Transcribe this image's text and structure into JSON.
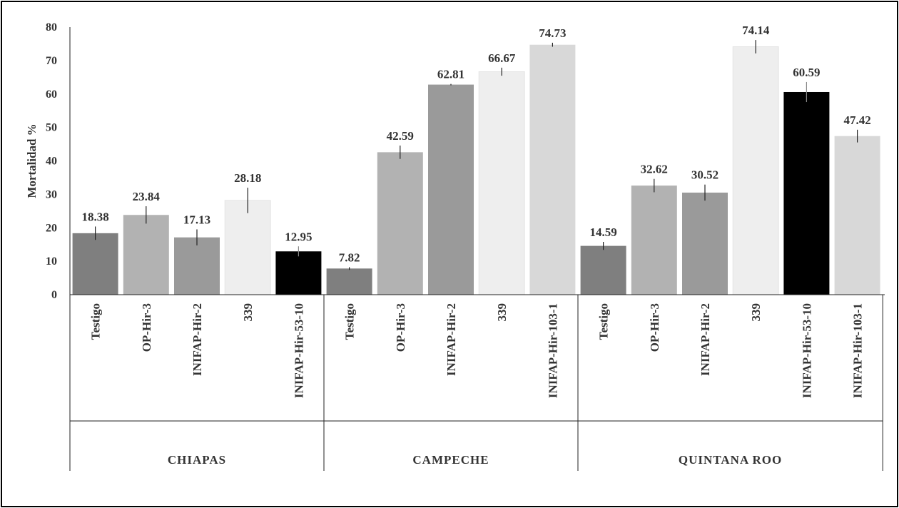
{
  "chart_data": {
    "type": "bar",
    "ylabel": "Mortalidad  %",
    "ylim": [
      0,
      80
    ],
    "yticks": [
      0,
      10,
      20,
      30,
      40,
      50,
      60,
      70,
      80
    ],
    "grid": false,
    "legend": "none",
    "groups": [
      {
        "name": "CHIAPAS",
        "bars": [
          {
            "category": "Testigo",
            "value": 18.38,
            "label": "18.38",
            "err": 2.0,
            "color": "#7f7f7f"
          },
          {
            "category": "OP-Hir-3",
            "value": 23.84,
            "label": "23.84",
            "err": 2.6,
            "color": "#b2b2b2"
          },
          {
            "category": "INIFAP-Hir-2",
            "value": 17.13,
            "label": "17.13",
            "err": 2.4,
            "color": "#9a9a9a"
          },
          {
            "category": "339",
            "value": 28.18,
            "label": "28.18",
            "err": 3.8,
            "color": "#eeeeee"
          },
          {
            "category": "INIFAP-Hir-53-10",
            "value": 12.95,
            "label": "12.95",
            "err": 1.5,
            "color": "#000000"
          }
        ]
      },
      {
        "name": "CAMPECHE",
        "bars": [
          {
            "category": "Testigo",
            "value": 7.82,
            "label": "7.82",
            "err": 0.4,
            "color": "#7f7f7f"
          },
          {
            "category": "OP-Hir-3",
            "value": 42.59,
            "label": "42.59",
            "err": 2.0,
            "color": "#b2b2b2"
          },
          {
            "category": "INIFAP-Hir-2",
            "value": 62.81,
            "label": "62.81",
            "err": 0.2,
            "color": "#9a9a9a"
          },
          {
            "category": "339",
            "value": 66.67,
            "label": "66.67",
            "err": 1.2,
            "color": "#eeeeee"
          },
          {
            "category": "INIFAP-Hir-103-1",
            "value": 74.73,
            "label": "74.73",
            "err": 0.6,
            "color": "#d8d8d8"
          }
        ]
      },
      {
        "name": "QUINTANA ROO",
        "bars": [
          {
            "category": "Testigo",
            "value": 14.59,
            "label": "14.59",
            "err": 1.2,
            "color": "#7f7f7f"
          },
          {
            "category": "OP-Hir-3",
            "value": 32.62,
            "label": "32.62",
            "err": 2.0,
            "color": "#b2b2b2"
          },
          {
            "category": "INIFAP-Hir-2",
            "value": 30.52,
            "label": "30.52",
            "err": 2.4,
            "color": "#9a9a9a"
          },
          {
            "category": "339",
            "value": 74.14,
            "label": "74.14",
            "err": 2.0,
            "color": "#eeeeee"
          },
          {
            "category": "INIFAP-Hir-53-10",
            "value": 60.59,
            "label": "60.59",
            "err": 3.0,
            "color": "#000000"
          },
          {
            "category": "INIFAP-Hir-103-1",
            "value": 47.42,
            "label": "47.42",
            "err": 1.9,
            "color": "#d8d8d8"
          }
        ]
      }
    ]
  }
}
